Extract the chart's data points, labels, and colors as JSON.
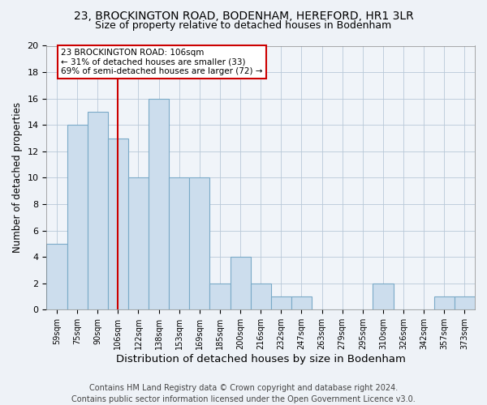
{
  "title1": "23, BROCKINGTON ROAD, BODENHAM, HEREFORD, HR1 3LR",
  "title2": "Size of property relative to detached houses in Bodenham",
  "xlabel": "Distribution of detached houses by size in Bodenham",
  "ylabel": "Number of detached properties",
  "bins": [
    "59sqm",
    "75sqm",
    "90sqm",
    "106sqm",
    "122sqm",
    "138sqm",
    "153sqm",
    "169sqm",
    "185sqm",
    "200sqm",
    "216sqm",
    "232sqm",
    "247sqm",
    "263sqm",
    "279sqm",
    "295sqm",
    "310sqm",
    "326sqm",
    "342sqm",
    "357sqm",
    "373sqm"
  ],
  "values": [
    5,
    14,
    15,
    13,
    10,
    16,
    10,
    10,
    2,
    4,
    2,
    1,
    1,
    0,
    0,
    0,
    2,
    0,
    0,
    1,
    1
  ],
  "bar_color": "#ccdded",
  "bar_edgecolor": "#7aaac8",
  "vline_x_index": 3,
  "vline_color": "#cc0000",
  "annotation_line1": "23 BROCKINGTON ROAD: 106sqm",
  "annotation_line2": "← 31% of detached houses are smaller (33)",
  "annotation_line3": "69% of semi-detached houses are larger (72) →",
  "annotation_box_facecolor": "white",
  "annotation_box_edgecolor": "#cc0000",
  "ylim": [
    0,
    20
  ],
  "yticks": [
    0,
    2,
    4,
    6,
    8,
    10,
    12,
    14,
    16,
    18,
    20
  ],
  "footer1": "Contains HM Land Registry data © Crown copyright and database right 2024.",
  "footer2": "Contains public sector information licensed under the Open Government Licence v3.0.",
  "bg_color": "#eef2f7",
  "plot_bg_color": "#f0f4f9",
  "title1_fontsize": 10,
  "title2_fontsize": 9,
  "xlabel_fontsize": 9.5,
  "ylabel_fontsize": 8.5,
  "footer_fontsize": 7
}
